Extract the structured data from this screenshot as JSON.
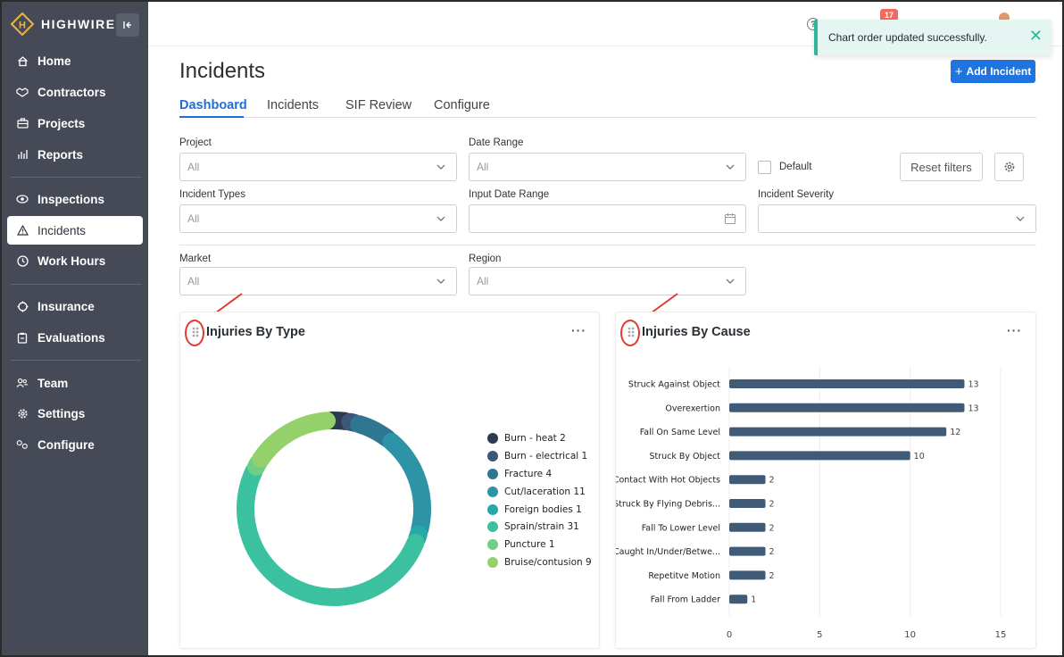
{
  "brand": {
    "name": "HIGHWIRE",
    "logo_letter": "H"
  },
  "sidebar": {
    "collapse_icon": "collapse-left-icon",
    "items": [
      {
        "label": "Home",
        "icon": "home-icon"
      },
      {
        "label": "Contractors",
        "icon": "handshake-icon"
      },
      {
        "label": "Projects",
        "icon": "briefcase-icon"
      },
      {
        "label": "Reports",
        "icon": "bar-chart-icon"
      },
      {
        "label": "Inspections",
        "icon": "eye-icon"
      },
      {
        "label": "Incidents",
        "icon": "warning-icon",
        "active": true
      },
      {
        "label": "Work Hours",
        "icon": "clock-icon"
      },
      {
        "label": "Insurance",
        "icon": "insurance-icon"
      },
      {
        "label": "Evaluations",
        "icon": "clipboard-icon"
      },
      {
        "label": "Team",
        "icon": "team-icon"
      },
      {
        "label": "Settings",
        "icon": "gear-icon"
      },
      {
        "label": "Configure",
        "icon": "configure-icon"
      }
    ]
  },
  "topbar": {
    "notification_count": "17"
  },
  "toast": {
    "message": "Chart order updated successfully."
  },
  "page": {
    "title": "Incidents",
    "add_button": "Add Incident",
    "tabs": [
      "Dashboard",
      "Incidents",
      "SIF Review",
      "Configure"
    ],
    "active_tab": "Dashboard"
  },
  "filters": {
    "project": {
      "label": "Project",
      "value": "All"
    },
    "date_range": {
      "label": "Date Range",
      "value": "All"
    },
    "default_checkbox": {
      "label": "Default",
      "checked": false
    },
    "reset_button": "Reset filters",
    "incident_types": {
      "label": "Incident Types",
      "value": "All"
    },
    "input_date_range": {
      "label": "Input Date Range",
      "value": ""
    },
    "incident_severity": {
      "label": "Incident Severity",
      "value": ""
    },
    "market": {
      "label": "Market",
      "value": "All"
    },
    "region": {
      "label": "Region",
      "value": "All"
    }
  },
  "cards": {
    "injuries_by_type": {
      "title": "Injuries By Type",
      "more": "···"
    },
    "injuries_by_cause": {
      "title": "Injuries By Cause",
      "more": "···"
    }
  },
  "chart_data": [
    {
      "type": "pie",
      "title": "Injuries By Type",
      "variant": "donut",
      "legend_position": "right",
      "categories": [
        "Burn - heat",
        "Burn - electrical",
        "Fracture",
        "Cut/laceration",
        "Foreign bodies",
        "Sprain/strain",
        "Puncture",
        "Bruise/contusion"
      ],
      "values": [
        2,
        1,
        4,
        11,
        1,
        31,
        1,
        9
      ],
      "colors": [
        "#2e3a4f",
        "#3c5878",
        "#2f7791",
        "#2d93a6",
        "#2aa8a8",
        "#3cc1a0",
        "#6fcf86",
        "#94d16a"
      ],
      "legend_labels": [
        "Burn - heat 2",
        "Burn - electrical 1",
        "Fracture 4",
        "Cut/laceration 11",
        "Foreign bodies 1",
        "Sprain/strain 31",
        "Puncture 1",
        "Bruise/contusion 9"
      ]
    },
    {
      "type": "bar",
      "orientation": "horizontal",
      "title": "Injuries By Cause",
      "categories": [
        "Struck Against Object",
        "Overexertion",
        "Fall On Same Level",
        "Struck By Object",
        "Contact With Hot Objects",
        "Struck By Flying Debris...",
        "Fall To Lower Level",
        "Caught In/Under/Betwe...",
        "Repetitve Motion",
        "Fall From Ladder"
      ],
      "values": [
        13,
        13,
        12,
        10,
        2,
        2,
        2,
        2,
        2,
        1
      ],
      "xlim": [
        0,
        15
      ],
      "xticks": [
        0,
        5,
        10,
        15
      ],
      "grid": true,
      "bar_color": "#3f5b78"
    }
  ]
}
